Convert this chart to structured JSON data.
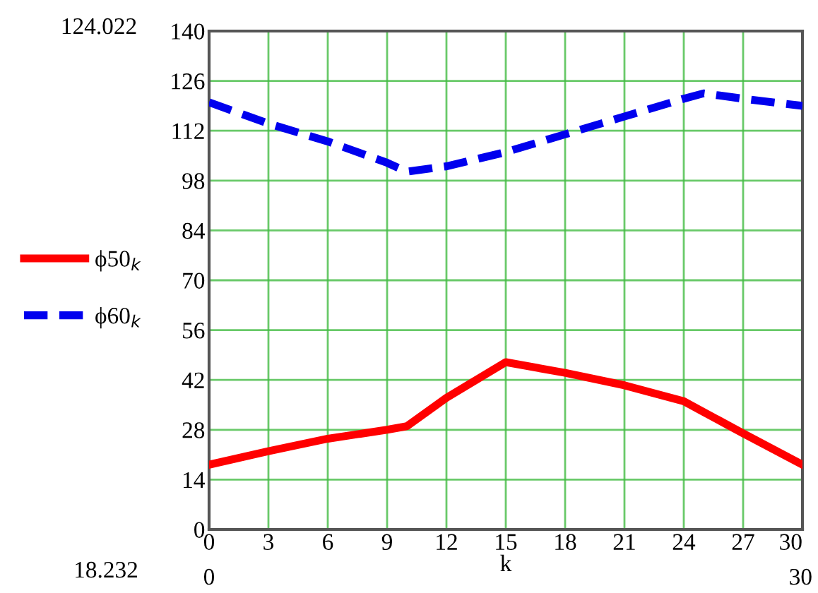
{
  "chart_data": {
    "type": "line",
    "xlabel": "k",
    "x": [
      0,
      3,
      6,
      9,
      10,
      12,
      15,
      18,
      21,
      24,
      25,
      27,
      30
    ],
    "series": [
      {
        "name": "ϕ50$_{k}$",
        "color": "#ff0000",
        "line_style": "solid",
        "values": [
          18.2,
          22,
          25.5,
          28,
          29,
          37,
          47,
          44,
          40.5,
          36,
          33,
          27,
          18.2
        ]
      },
      {
        "name": "ϕ60$_{k}$",
        "color": "#0000ee",
        "line_style": "dashed",
        "values": [
          120,
          114,
          109,
          103,
          100.5,
          102,
          106,
          111,
          116,
          121,
          122.5,
          121,
          119
        ]
      }
    ],
    "xlim": [
      0,
      30
    ],
    "xticks": [
      0,
      3,
      6,
      9,
      12,
      15,
      18,
      21,
      24,
      27,
      30
    ],
    "ylim": [
      0,
      140
    ],
    "yticks": [
      0,
      14,
      28,
      42,
      56,
      70,
      84,
      98,
      112,
      126,
      140
    ],
    "grid": true,
    "legend": "left",
    "marker": "none",
    "annotations": [
      "124.022",
      "18.232",
      "0",
      "30"
    ]
  }
}
